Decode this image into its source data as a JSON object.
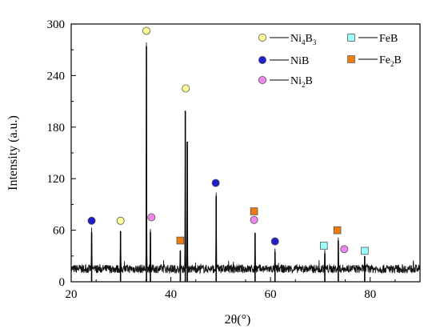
{
  "chart_data": {
    "type": "line",
    "xlabel": "2θ(°)",
    "ylabel": "Intensity (a.u.)",
    "xlim": [
      20,
      90
    ],
    "ylim": [
      0,
      300
    ],
    "xticks": [
      20,
      40,
      60,
      80
    ],
    "yticks": [
      0,
      60,
      120,
      180,
      240,
      300
    ],
    "baseline": 15,
    "noise_amplitude": 5,
    "grid": false,
    "peaks": [
      {
        "x": 24.1,
        "y": 58
      },
      {
        "x": 29.9,
        "y": 59
      },
      {
        "x": 35.1,
        "y": 274
      },
      {
        "x": 35.9,
        "y": 58
      },
      {
        "x": 41.9,
        "y": 36
      },
      {
        "x": 42.9,
        "y": 199
      },
      {
        "x": 43.3,
        "y": 163
      },
      {
        "x": 49.1,
        "y": 100
      },
      {
        "x": 56.9,
        "y": 57
      },
      {
        "x": 60.9,
        "y": 35
      },
      {
        "x": 70.9,
        "y": 33
      },
      {
        "x": 73.6,
        "y": 48
      },
      {
        "x": 78.9,
        "y": 30
      }
    ],
    "markers": [
      {
        "phase": "NiB",
        "x": 24.1,
        "y": 71
      },
      {
        "phase": "Ni4B3",
        "x": 29.9,
        "y": 71
      },
      {
        "phase": "Ni4B3",
        "x": 35.1,
        "y": 292
      },
      {
        "phase": "Ni2B",
        "x": 36.1,
        "y": 75
      },
      {
        "phase": "Fe2B",
        "x": 41.9,
        "y": 48
      },
      {
        "phase": "Ni4B3",
        "x": 43.0,
        "y": 225
      },
      {
        "phase": "NiB",
        "x": 49.0,
        "y": 115
      },
      {
        "phase": "Fe2B",
        "x": 56.7,
        "y": 82
      },
      {
        "phase": "Ni2B",
        "x": 56.7,
        "y": 72
      },
      {
        "phase": "NiB",
        "x": 60.9,
        "y": 47
      },
      {
        "phase": "FeB",
        "x": 70.7,
        "y": 42
      },
      {
        "phase": "Fe2B",
        "x": 73.4,
        "y": 60
      },
      {
        "phase": "Ni2B",
        "x": 74.8,
        "y": 38
      },
      {
        "phase": "FeB",
        "x": 78.9,
        "y": 36
      }
    ],
    "legend": [
      {
        "phase": "Ni4B3",
        "base": "Ni",
        "sub1": "4",
        "mid": "B",
        "sub2": "3",
        "shape": "circle",
        "fill": "#ffff99"
      },
      {
        "phase": "NiB",
        "base": "NiB",
        "sub1": "",
        "mid": "",
        "sub2": "",
        "shape": "circle",
        "fill": "#1f1fc8"
      },
      {
        "phase": "Ni2B",
        "base": "Ni",
        "sub1": "2",
        "mid": "B",
        "sub2": "",
        "shape": "circle",
        "fill": "#ee88ee"
      },
      {
        "phase": "FeB",
        "base": "FeB",
        "sub1": "",
        "mid": "",
        "sub2": "",
        "shape": "square",
        "fill": "#99ffff"
      },
      {
        "phase": "Fe2B",
        "base": "Fe",
        "sub1": "2",
        "mid": "B",
        "sub2": "",
        "shape": "square",
        "fill": "#f07c10"
      }
    ]
  }
}
